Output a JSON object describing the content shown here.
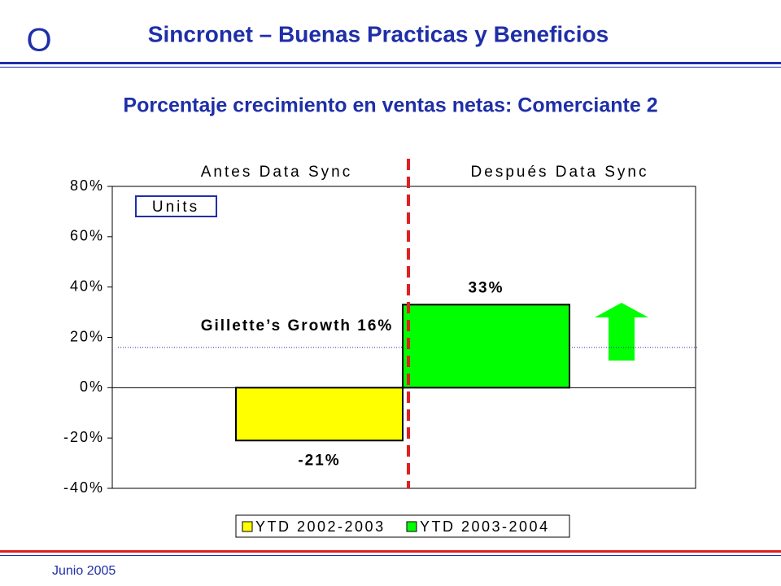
{
  "header": {
    "logo": "O",
    "title": "Sincronet – Buenas Practicas y Beneficios"
  },
  "footer": {
    "date": "Junio 2005"
  },
  "chart_data": {
    "type": "bar",
    "title": "Porcentaje crecimiento en ventas netas: Comerciante 2",
    "annotations": [
      "Antes Data Sync",
      "Después Data Sync",
      "Units"
    ],
    "reference_line": {
      "label": "Gillette’s Growth 16%",
      "value": 16
    },
    "series": [
      {
        "name": "YTD 2002-2003",
        "color": "#ffff00",
        "values": [
          -21
        ],
        "value_labels": [
          "-21%"
        ]
      },
      {
        "name": "YTD 2003-2004",
        "color": "#00ff00",
        "values": [
          33
        ],
        "value_labels": [
          "33%"
        ]
      }
    ],
    "ylim": [
      -40,
      80
    ],
    "yticks": [
      {
        "value": -40,
        "label": "-40%"
      },
      {
        "value": -20,
        "label": "-20%"
      },
      {
        "value": 0,
        "label": "0%"
      },
      {
        "value": 20,
        "label": "20%"
      },
      {
        "value": 40,
        "label": "40%"
      },
      {
        "value": 60,
        "label": "60%"
      },
      {
        "value": 80,
        "label": "80%"
      }
    ]
  }
}
